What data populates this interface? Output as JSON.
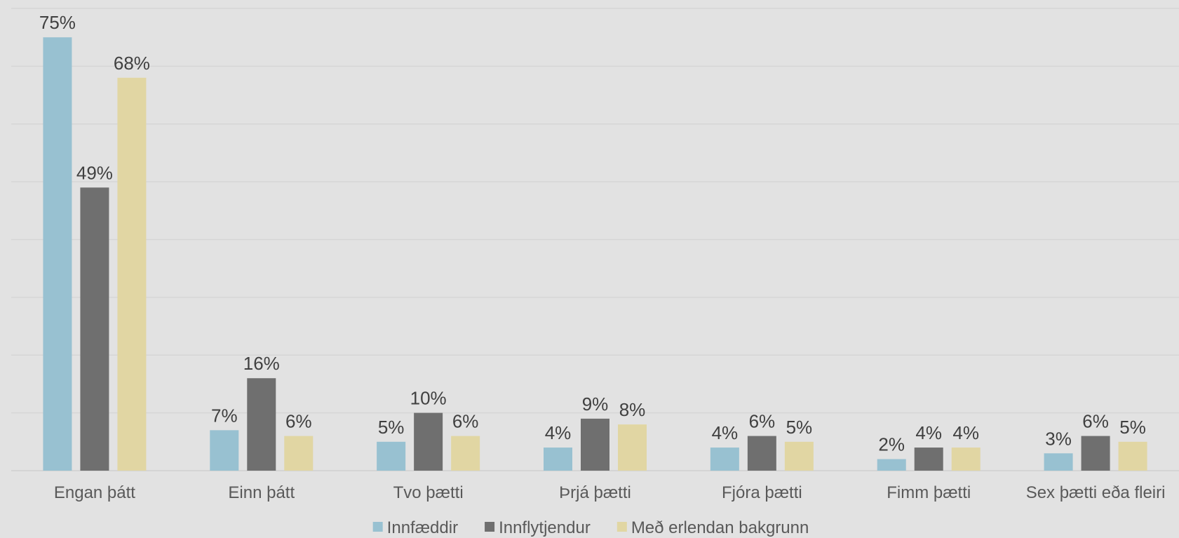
{
  "chart_data": {
    "type": "bar",
    "title": "",
    "xlabel": "",
    "ylabel": "",
    "ylim": [
      0,
      80
    ],
    "y_axis_visible": false,
    "grid": true,
    "legend_position": "bottom",
    "categories": [
      "Engan þátt",
      "Einn þátt",
      "Tvo þætti",
      "Þrjá þætti",
      "Fjóra þætti",
      "Fimm þætti",
      "Sex þætti eða fleiri"
    ],
    "series": [
      {
        "name": "Innfæddir",
        "color": "#98c1d1",
        "values": [
          75,
          7,
          5,
          4,
          4,
          2,
          3
        ],
        "labels": [
          "75%",
          "7%",
          "5%",
          "4%",
          "4%",
          "2%",
          "3%"
        ]
      },
      {
        "name": "Innflytjendur",
        "color": "#6f6f6f",
        "values": [
          49,
          16,
          10,
          9,
          6,
          4,
          6
        ],
        "labels": [
          "49%",
          "16%",
          "10%",
          "9%",
          "6%",
          "4%",
          "6%"
        ]
      },
      {
        "name": "Með erlendan bakgrunn",
        "color": "#e1d6a3",
        "values": [
          68,
          6,
          6,
          8,
          5,
          4,
          5
        ],
        "labels": [
          "68%",
          "6%",
          "6%",
          "8%",
          "5%",
          "4%",
          "5%"
        ]
      }
    ]
  }
}
